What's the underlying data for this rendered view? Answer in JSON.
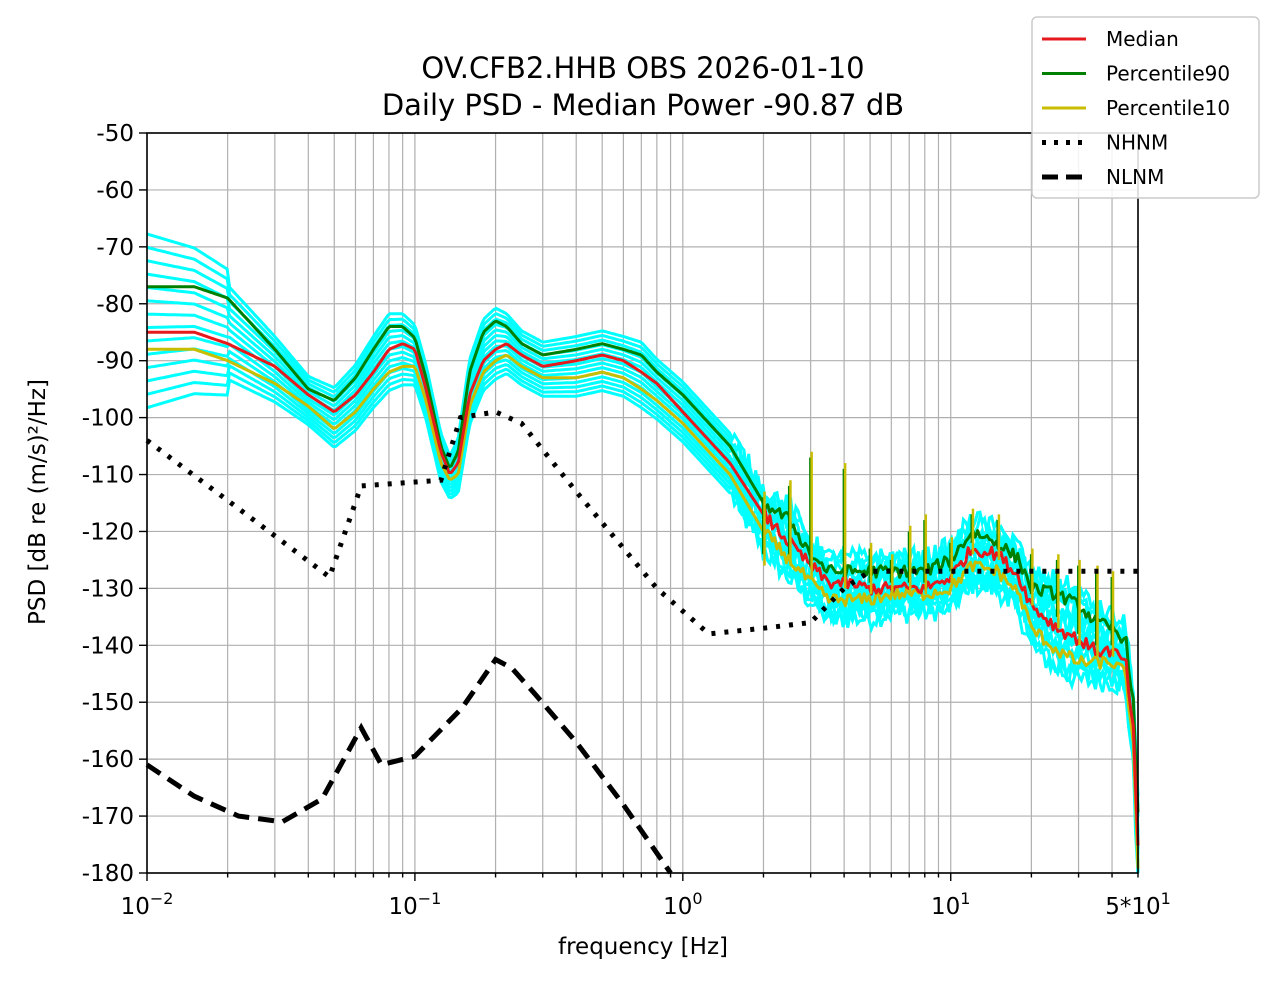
{
  "chart_data": {
    "type": "line",
    "title_line1": "OV.CFB2.HHB OBS 2026-01-10",
    "title_line2": "Daily PSD - Median Power -90.87 dB",
    "xlabel": "frequency [Hz]",
    "ylabel": "PSD [dB re (m/s)²/Hz]",
    "x_scale": "log",
    "xlim": [
      0.01,
      50
    ],
    "ylim": [
      -180,
      -50
    ],
    "x_ticks": [
      {
        "value": 0.01,
        "base": "10",
        "exp": "−2"
      },
      {
        "value": 0.1,
        "base": "10",
        "exp": "−1"
      },
      {
        "value": 1,
        "base": "10",
        "exp": "0"
      },
      {
        "value": 10,
        "base": "10",
        "exp": "1"
      },
      {
        "value": 50,
        "base": "5*10",
        "exp": "1"
      }
    ],
    "y_ticks": [
      -50,
      -60,
      -70,
      -80,
      -90,
      -100,
      -110,
      -120,
      -130,
      -140,
      -150,
      -160,
      -170,
      -180
    ],
    "grid": true,
    "legend_position": "top-right, outside",
    "legend": [
      {
        "label": "Median",
        "color": "#e41a1c",
        "style": "solid"
      },
      {
        "label": "Percentile90",
        "color": "#008000",
        "style": "solid"
      },
      {
        "label": "Percentile10",
        "color": "#c8bd00",
        "style": "solid"
      },
      {
        "label": "NHNM",
        "color": "#000000",
        "style": "dotted"
      },
      {
        "label": "NLNM",
        "color": "#000000",
        "style": "dashed"
      }
    ],
    "series": [
      {
        "name": "Median",
        "color": "#e41a1c",
        "style": "solid",
        "x": [
          0.01,
          0.015,
          0.02,
          0.03,
          0.04,
          0.05,
          0.06,
          0.07,
          0.08,
          0.09,
          0.1,
          0.11,
          0.125,
          0.135,
          0.145,
          0.16,
          0.18,
          0.2,
          0.22,
          0.25,
          0.3,
          0.4,
          0.5,
          0.6,
          0.7,
          0.8,
          1,
          1.5,
          2,
          2.5,
          3,
          3.5,
          4,
          5,
          6,
          8,
          10,
          12,
          15,
          18,
          20,
          25,
          30,
          35,
          40,
          45,
          48,
          50
        ],
        "y": [
          -85,
          -85,
          -87,
          -91,
          -96,
          -99,
          -96,
          -92,
          -88,
          -87,
          -88,
          -95,
          -106,
          -110,
          -108,
          -96,
          -90,
          -88,
          -87,
          -89,
          -91,
          -90,
          -89,
          -90,
          -92,
          -94,
          -99,
          -108,
          -117,
          -122,
          -126,
          -129,
          -129,
          -130,
          -130,
          -130,
          -128,
          -123,
          -124,
          -128,
          -133,
          -137,
          -139,
          -141,
          -141,
          -143,
          -155,
          -176
        ]
      },
      {
        "name": "Percentile90",
        "color": "#008000",
        "style": "solid",
        "x": [
          0.01,
          0.015,
          0.02,
          0.03,
          0.04,
          0.05,
          0.06,
          0.07,
          0.08,
          0.09,
          0.1,
          0.11,
          0.125,
          0.135,
          0.145,
          0.16,
          0.18,
          0.2,
          0.22,
          0.25,
          0.3,
          0.4,
          0.5,
          0.6,
          0.7,
          0.8,
          1,
          1.5,
          2,
          2.5,
          3,
          3.5,
          4,
          5,
          6,
          8,
          10,
          12,
          15,
          18,
          20,
          25,
          30,
          35,
          40,
          45,
          48,
          50
        ],
        "y": [
          -77,
          -77,
          -79,
          -88,
          -95,
          -97,
          -93,
          -88,
          -84,
          -84,
          -86,
          -93,
          -105,
          -109,
          -106,
          -92,
          -85,
          -83,
          -84,
          -87,
          -89,
          -88,
          -87,
          -88,
          -89,
          -92,
          -96,
          -105,
          -115,
          -118,
          -124,
          -127,
          -127,
          -127,
          -127,
          -127,
          -125,
          -120,
          -122,
          -125,
          -130,
          -131,
          -133,
          -136,
          -137,
          -139,
          -150,
          -170
        ]
      },
      {
        "name": "Percentile10",
        "color": "#c8bd00",
        "style": "solid",
        "x": [
          0.01,
          0.015,
          0.02,
          0.03,
          0.04,
          0.05,
          0.06,
          0.07,
          0.08,
          0.09,
          0.1,
          0.11,
          0.125,
          0.135,
          0.145,
          0.16,
          0.18,
          0.2,
          0.22,
          0.25,
          0.3,
          0.4,
          0.5,
          0.6,
          0.7,
          0.8,
          1,
          1.5,
          2,
          2.5,
          3,
          3.5,
          4,
          5,
          6,
          8,
          10,
          12,
          15,
          18,
          20,
          25,
          30,
          35,
          40,
          45,
          48,
          50
        ],
        "y": [
          -88,
          -88,
          -90,
          -94,
          -98,
          -102,
          -99,
          -95,
          -92,
          -91,
          -91,
          -97,
          -108,
          -111,
          -110,
          -98,
          -92,
          -90,
          -89,
          -91,
          -93,
          -93,
          -92,
          -93,
          -95,
          -97,
          -101,
          -110,
          -120,
          -125,
          -129,
          -132,
          -132,
          -132,
          -131,
          -131,
          -130,
          -126,
          -127,
          -131,
          -137,
          -141,
          -143,
          -143,
          -143,
          -145,
          -158,
          -180
        ]
      },
      {
        "name": "NHNM",
        "color": "#000000",
        "style": "dotted",
        "x": [
          0.01,
          0.022,
          0.048,
          0.063,
          0.125,
          0.148,
          0.2,
          0.25,
          0.4,
          0.8,
          1.25,
          2,
          3,
          4,
          5,
          8,
          10,
          15,
          20,
          30,
          50
        ],
        "y": [
          -104,
          -116,
          -128,
          -112,
          -111,
          -100,
          -99,
          -101,
          -113,
          -130,
          -138,
          -137,
          -136,
          -130,
          -127,
          -127,
          -127,
          -127,
          -127,
          -127,
          -127
        ]
      },
      {
        "name": "NLNM",
        "color": "#000000",
        "style": "dashed",
        "x": [
          0.01,
          0.015,
          0.022,
          0.032,
          0.045,
          0.063,
          0.075,
          0.1,
          0.15,
          0.2,
          0.23,
          0.28,
          0.4,
          0.6,
          0.9
        ],
        "y": [
          -161,
          -166.5,
          -170,
          -171,
          -167,
          -154.5,
          -161,
          -159.5,
          -151,
          -142.5,
          -144,
          -148.5,
          -157,
          -168,
          -180
        ]
      }
    ],
    "band_color": "#00ffff",
    "spikes": [
      {
        "x": 2,
        "y_top": -114,
        "y_base": -124
      },
      {
        "x": 2.5,
        "y_top": -112,
        "y_base": -124
      },
      {
        "x": 3,
        "y_top": -107,
        "y_base": -126
      },
      {
        "x": 4,
        "y_top": -109,
        "y_base": -128
      },
      {
        "x": 5,
        "y_top": -123,
        "y_base": -129
      },
      {
        "x": 6,
        "y_top": -125,
        "y_base": -129
      },
      {
        "x": 7,
        "y_top": -120,
        "y_base": -129
      },
      {
        "x": 8,
        "y_top": -118,
        "y_base": -129
      },
      {
        "x": 10,
        "y_top": -122,
        "y_base": -127
      },
      {
        "x": 12,
        "y_top": -117,
        "y_base": -122
      },
      {
        "x": 15,
        "y_top": -118,
        "y_base": -123
      },
      {
        "x": 20,
        "y_top": -124,
        "y_base": -131
      },
      {
        "x": 25,
        "y_top": -125,
        "y_base": -135
      },
      {
        "x": 30,
        "y_top": -126,
        "y_base": -138
      },
      {
        "x": 35,
        "y_top": -127,
        "y_base": -140
      },
      {
        "x": 40,
        "y_top": -128,
        "y_base": -140
      }
    ]
  }
}
